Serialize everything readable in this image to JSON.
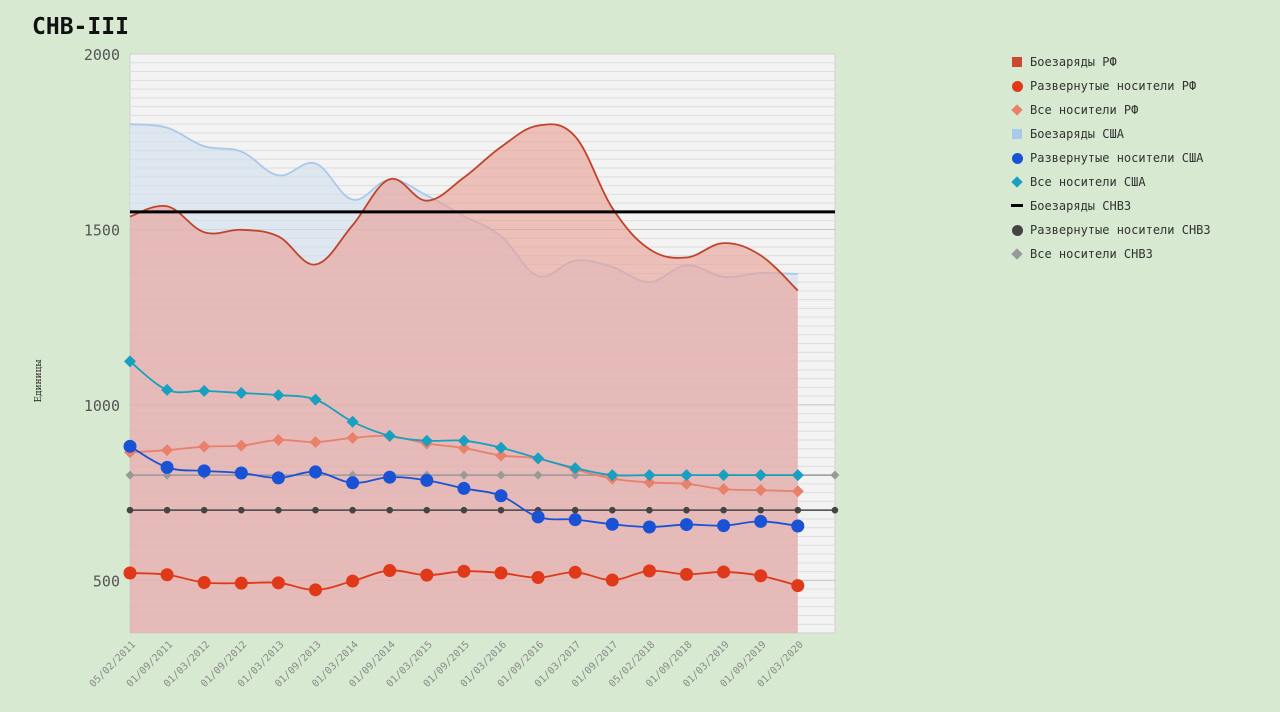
{
  "title": "CHB-III",
  "chart_data": {
    "type": "area",
    "title": "CHB-III",
    "xlabel": "",
    "ylabel": "Единицы",
    "ylim": [
      350,
      2000
    ],
    "yticks": [
      500,
      1000,
      1500,
      2000
    ],
    "grid": true,
    "legend_position": "right",
    "categories": [
      "05/02/2011",
      "01/09/2011",
      "01/03/2012",
      "01/09/2012",
      "01/03/2013",
      "01/09/2013",
      "01/03/2014",
      "01/09/2014",
      "01/03/2015",
      "01/09/2015",
      "01/03/2016",
      "01/09/2016",
      "01/03/2017",
      "01/09/2017",
      "05/02/2018",
      "01/09/2018",
      "01/03/2019",
      "01/09/2019",
      "01/03/2020"
    ],
    "series": [
      {
        "name": "Боезаряды РФ",
        "kind": "area",
        "color": "#c0442c",
        "fill": "#e8a39a",
        "values": [
          1537,
          1566,
          1492,
          1499,
          1480,
          1400,
          1512,
          1643,
          1582,
          1648,
          1735,
          1796,
          1765,
          1561,
          1444,
          1420,
          1461,
          1426,
          1326
        ]
      },
      {
        "name": "Развернутые носители РФ",
        "kind": "line-circle",
        "color": "#e0391a",
        "values": [
          521,
          516,
          494,
          492,
          493,
          473,
          498,
          528,
          515,
          526,
          521,
          508,
          523,
          501,
          527,
          517,
          524,
          513,
          485
        ]
      },
      {
        "name": "Все носители РФ",
        "kind": "line-diamond",
        "color": "#e8806a",
        "values": [
          865,
          871,
          881,
          884,
          900,
          894,
          906,
          911,
          890,
          877,
          856,
          847,
          816,
          790,
          779,
          775,
          760,
          757,
          754
        ]
      },
      {
        "name": "Боезаряды США",
        "kind": "area",
        "color": "#a9c9ea",
        "fill": "#d2dfec",
        "values": [
          1800,
          1790,
          1737,
          1722,
          1654,
          1688,
          1585,
          1642,
          1597,
          1538,
          1481,
          1367,
          1411,
          1393,
          1350,
          1398,
          1365,
          1376,
          1373
        ]
      },
      {
        "name": "Развернутые носители США",
        "kind": "line-circle",
        "color": "#1a52d6",
        "values": [
          882,
          822,
          812,
          806,
          792,
          809,
          778,
          794,
          785,
          762,
          741,
          681,
          673,
          660,
          652,
          659,
          656,
          668,
          655
        ]
      },
      {
        "name": "Все носители США",
        "kind": "line-diamond",
        "color": "#17a0c0",
        "values": [
          1124,
          1043,
          1040,
          1034,
          1028,
          1015,
          952,
          912,
          898,
          898,
          878,
          848,
          820,
          800,
          800,
          800,
          800,
          800,
          800
        ]
      },
      {
        "name": "Боезаряды СНВ3",
        "kind": "hline",
        "color": "#000000",
        "value": 1550
      },
      {
        "name": "Развернутые носители СНВ3",
        "kind": "dotted-circle",
        "color": "#444444",
        "value": 700
      },
      {
        "name": "Все носители СНВ3",
        "kind": "dotted-diamond",
        "color": "#999999",
        "value": 800
      }
    ]
  },
  "legend": [
    {
      "label": "Боезаряды РФ",
      "shape": "square",
      "color": "#c94a30"
    },
    {
      "label": "Развернутые носители РФ",
      "shape": "circle",
      "color": "#e0391a"
    },
    {
      "label": "Все носители РФ",
      "shape": "diamond",
      "color": "#e8806a"
    },
    {
      "label": "Боезаряды США",
      "shape": "square",
      "color": "#a9c9ea"
    },
    {
      "label": "Развернутые носители США",
      "shape": "circle",
      "color": "#1a52d6"
    },
    {
      "label": "Все носители США",
      "shape": "diamond",
      "color": "#17a0c0"
    },
    {
      "label": "Боезаряды СНВ3",
      "shape": "line",
      "color": "#000000"
    },
    {
      "label": "Развернутые носители СНВ3",
      "shape": "circle",
      "color": "#444444"
    },
    {
      "label": "Все носители СНВ3",
      "shape": "diamond",
      "color": "#999999"
    }
  ]
}
